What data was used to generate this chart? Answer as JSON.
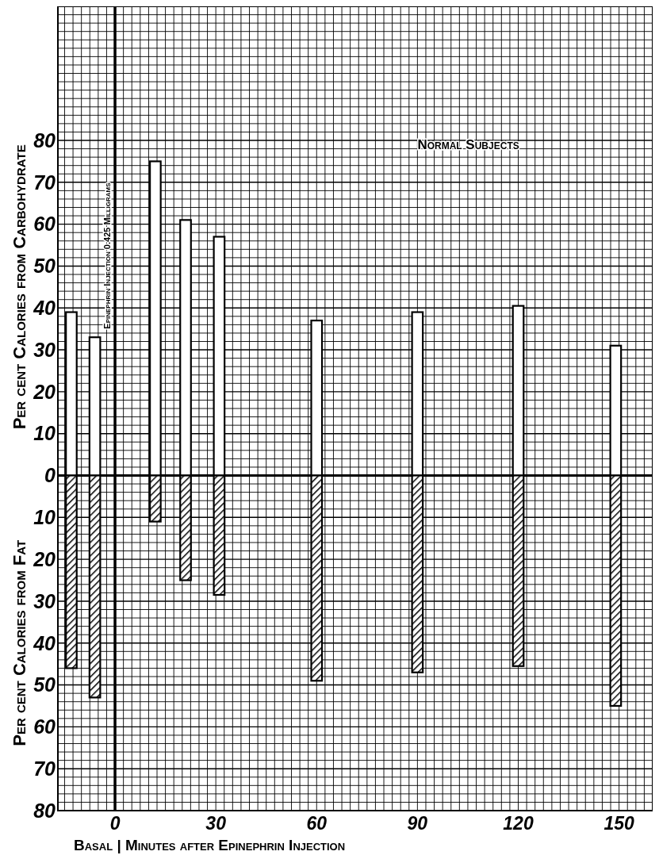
{
  "chart_data": {
    "type": "bar",
    "title": "Normal Subjects",
    "xlabel": "Basal | Minutes after Epinephrin Injection",
    "ylabel": "Per cent Calories from Carbohydrate",
    "annotations": [
      "Per cent Calories from Fat"
    ],
    "x": [
      -13,
      -6,
      12,
      21,
      31,
      60,
      90,
      120,
      149
    ],
    "stacked": true,
    "series": [
      {
        "color": "#ffffff",
        "values": [
          39,
          33,
          75,
          61,
          57,
          37,
          39,
          40.5,
          31
        ]
      },
      {
        "color": "#000000",
        "values": [
          -46,
          -53,
          -11,
          -25,
          -28.5,
          -49,
          -47,
          -45.5,
          -55
        ]
      }
    ],
    "xlim": [
      -17,
      160
    ],
    "xticks": [
      0,
      30,
      60,
      90,
      120,
      150
    ],
    "ylim": [
      -80,
      112
    ],
    "yticks": [
      {
        "value": -80,
        "label": "80"
      },
      {
        "value": -70,
        "label": "70"
      },
      {
        "value": -60,
        "label": "60"
      },
      {
        "value": -50,
        "label": "50"
      },
      {
        "value": -40,
        "label": "40"
      },
      {
        "value": -30,
        "label": "30"
      },
      {
        "value": -20,
        "label": "20"
      },
      {
        "value": -10,
        "label": "10"
      },
      0,
      10,
      20,
      30,
      40,
      50,
      60,
      70,
      80
    ],
    "ref_lines": [
      {
        "axis": "x",
        "value": 0,
        "label": "Epinephrin Injection 0.425 Milligrams"
      }
    ],
    "grid": true
  }
}
